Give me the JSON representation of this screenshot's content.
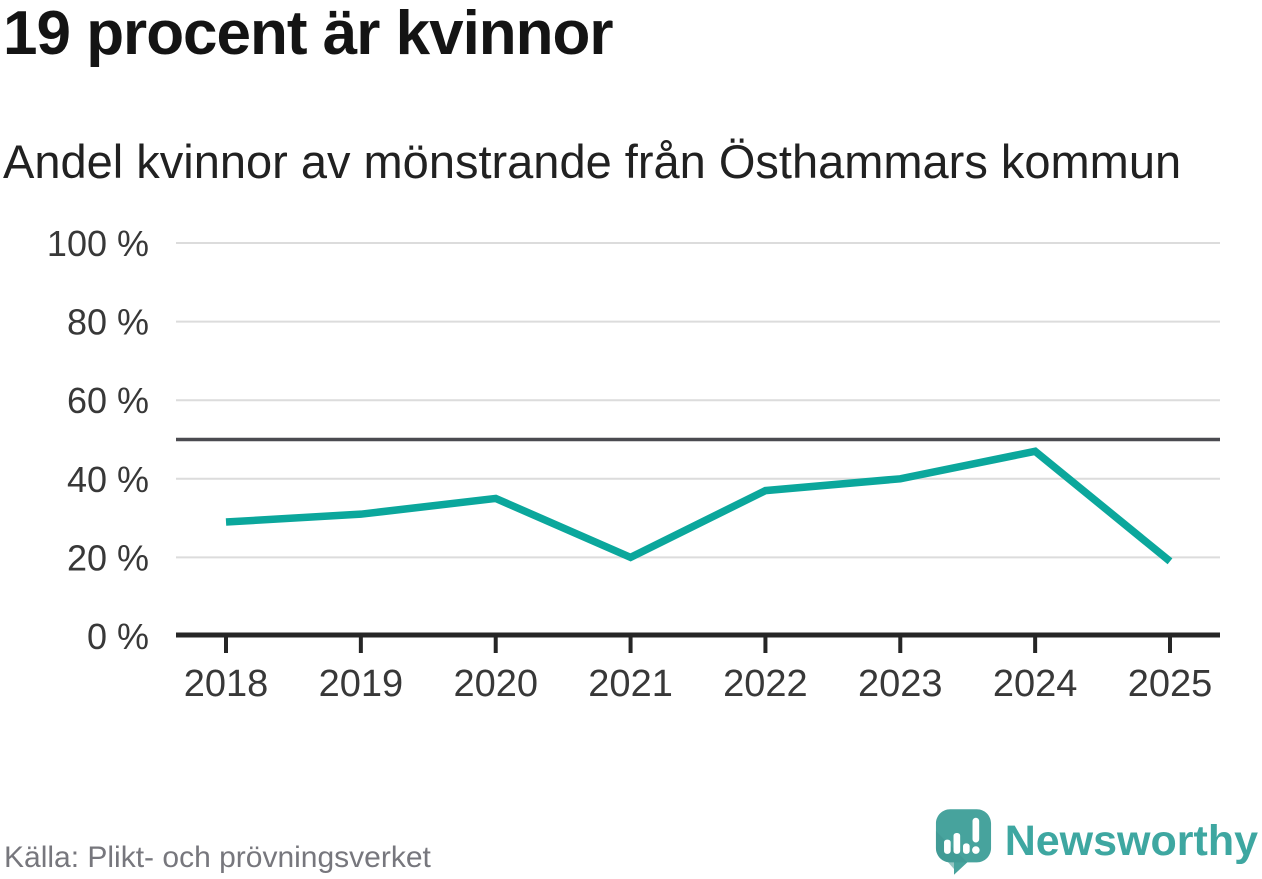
{
  "header": {
    "title": "19 procent är kvinnor",
    "subtitle": "Andel kvinnor av mönstrande från Östhammars kommun"
  },
  "chart_data": {
    "type": "line",
    "title": "19 procent är kvinnor",
    "subtitle": "Andel kvinnor av mönstrande från Östhammars kommun",
    "categories": [
      "2018",
      "2019",
      "2020",
      "2021",
      "2022",
      "2023",
      "2024",
      "2025"
    ],
    "series": [
      {
        "name": "Andel kvinnor av mönstrande, Östhammars kommun",
        "values": [
          29,
          31,
          35,
          20,
          37,
          40,
          47,
          19
        ]
      }
    ],
    "unit": "%",
    "xlabel": "",
    "ylabel": "",
    "ylim": [
      0,
      100
    ],
    "yticks": [
      0,
      20,
      40,
      60,
      80,
      100
    ],
    "ytick_labels": [
      "0 %",
      "20 %",
      "40 %",
      "60 %",
      "80 %",
      "100 %"
    ],
    "reference_line": 50,
    "grid": "horizontal",
    "legend": "none"
  },
  "footer": {
    "source": "Källa: Plikt- och prövningsverket",
    "brand": "Newsworthy"
  },
  "colors": {
    "line": "#0ba79c",
    "grid": "#dcdcdc",
    "reference": "#4b4b50",
    "axis": "#262626",
    "axis_text": "#383838",
    "title": "#141414",
    "subtitle": "#212121",
    "source": "#77777d",
    "brand_text": "#3ea7a1",
    "logo": "#47a39d"
  }
}
